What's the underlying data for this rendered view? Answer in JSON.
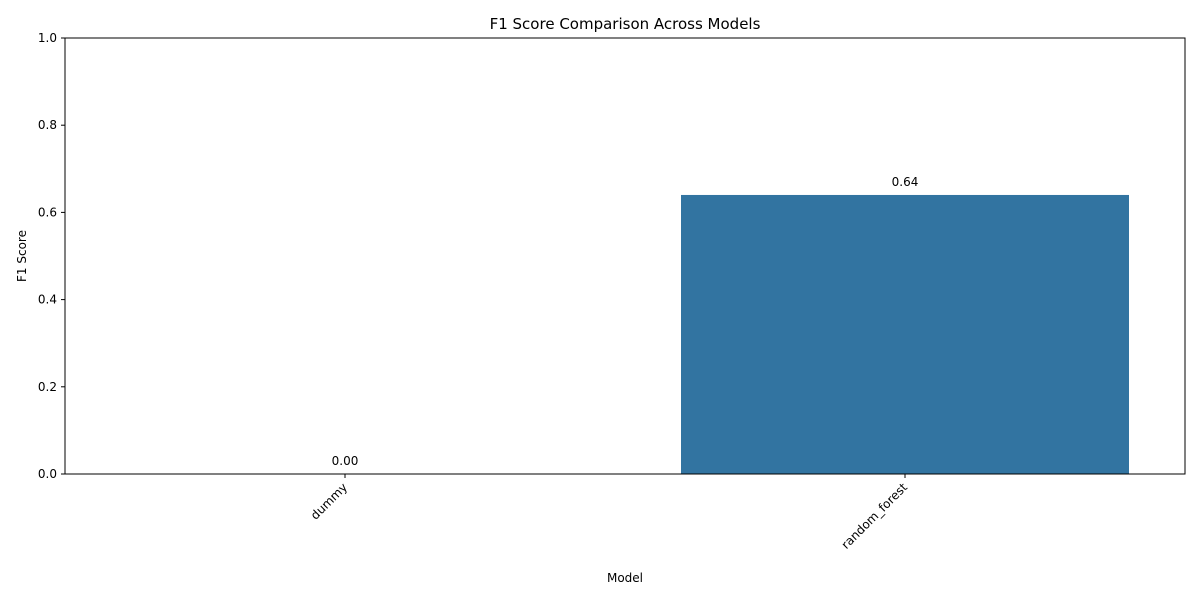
{
  "chart_data": {
    "type": "bar",
    "title": "F1 Score Comparison Across Models",
    "xlabel": "Model",
    "ylabel": "F1 Score",
    "categories": [
      "dummy",
      "random_forest"
    ],
    "values": [
      0.0,
      0.64
    ],
    "data_labels": [
      "0.00",
      "0.64"
    ],
    "ylim": [
      0,
      1
    ],
    "yticks": [
      0.0,
      0.2,
      0.4,
      0.6,
      0.8,
      1.0
    ],
    "ytick_labels": [
      "0.0",
      "0.2",
      "0.4",
      "0.6",
      "0.8",
      "1.0"
    ],
    "grid": false,
    "legend": "none",
    "bar_color": "#3274a1"
  }
}
